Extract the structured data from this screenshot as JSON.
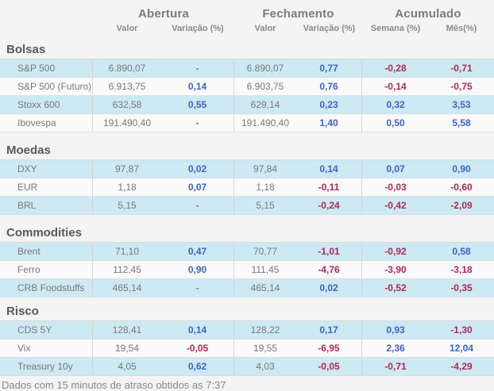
{
  "chart_data": {
    "type": "table",
    "column_groups": [
      "Abertura",
      "Fechamento",
      "Acumulado"
    ],
    "columns": [
      "Valor",
      "Variação (%)",
      "Valor",
      "Variação (%)",
      "Semana (%)",
      "Mês(%)"
    ],
    "sections": [
      {
        "title": "Bolsas",
        "rows": [
          {
            "label": "S&P 500",
            "values": [
              "6.890,07",
              "-",
              "6.890,07",
              "0,77",
              "-0,28",
              "-0,71"
            ]
          },
          {
            "label": "S&P 500 (Futuro)",
            "values": [
              "6.913,75",
              "0,14",
              "6.903,75",
              "0,76",
              "-0,14",
              "-0,75"
            ]
          },
          {
            "label": "Stoxx 600",
            "values": [
              "632,58",
              "0,55",
              "629,14",
              "0,23",
              "0,32",
              "3,53"
            ]
          },
          {
            "label": "Ibovespa",
            "values": [
              "191.490,40",
              "-",
              "191.490,40",
              "1,40",
              "0,50",
              "5,58"
            ]
          }
        ]
      },
      {
        "title": "Moedas",
        "rows": [
          {
            "label": "DXY",
            "values": [
              "97,87",
              "0,02",
              "97,84",
              "0,14",
              "0,07",
              "0,90"
            ]
          },
          {
            "label": "EUR",
            "values": [
              "1,18",
              "0,07",
              "1,18",
              "-0,11",
              "-0,03",
              "-0,60"
            ]
          },
          {
            "label": "BRL",
            "values": [
              "5,15",
              "-",
              "5,15",
              "-0,24",
              "-0,42",
              "-2,09"
            ]
          }
        ]
      },
      {
        "title": "Commodities",
        "rows": [
          {
            "label": "Brent",
            "values": [
              "71,10",
              "0,47",
              "70,77",
              "-1,01",
              "-0,92",
              "0,58"
            ]
          },
          {
            "label": "Ferro",
            "values": [
              "112,45",
              "0,90",
              "111,45",
              "-4,76",
              "-3,90",
              "-3,18"
            ]
          },
          {
            "label": "CRB Foodstuffs",
            "values": [
              "465,14",
              "-",
              "465,14",
              "0,02",
              "-0,52",
              "-0,35"
            ]
          }
        ]
      },
      {
        "title": "Risco",
        "rows": [
          {
            "label": "CDS 5Y",
            "values": [
              "128,41",
              "0,14",
              "128,22",
              "0,17",
              "0,93",
              "-1,30"
            ]
          },
          {
            "label": "Vix",
            "values": [
              "19,54",
              "-0,05",
              "19,55",
              "-6,95",
              "2,36",
              "12,04"
            ]
          },
          {
            "label": "Treasury 10y",
            "values": [
              "4,05",
              "0,62",
              "4,03",
              "-0,05",
              "-0,71",
              "-4,29"
            ]
          }
        ]
      }
    ]
  },
  "footer": {
    "note": "Dados com 15 minutos de atraso obtidos as 7:37"
  },
  "colors": {
    "positive": "#3d63c8",
    "negative": "#af2a52",
    "row_highlight": "#cde9f4",
    "row_alt": "#fafafa"
  }
}
